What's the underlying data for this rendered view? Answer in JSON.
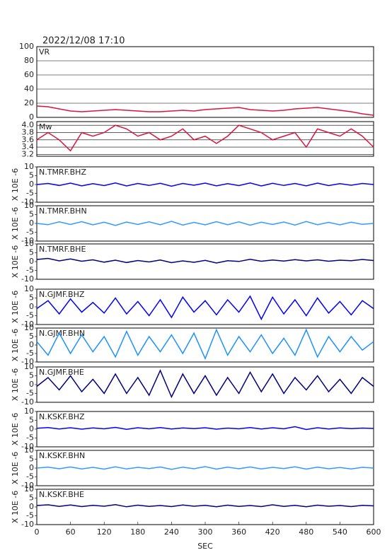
{
  "title": "2022/12/08 17:10",
  "chart_data": [
    {
      "type": "line",
      "title": "VR",
      "color": "#dc143c",
      "xlim": [
        0,
        600
      ],
      "ylim": [
        0,
        100
      ],
      "yticks": [
        0,
        20,
        40,
        60,
        80,
        100
      ],
      "grid": true,
      "x": [
        0,
        20,
        40,
        60,
        80,
        100,
        120,
        140,
        160,
        180,
        200,
        220,
        240,
        260,
        280,
        300,
        320,
        340,
        360,
        380,
        400,
        420,
        440,
        460,
        480,
        500,
        520,
        540,
        560,
        580,
        600
      ],
      "values": [
        16,
        15,
        12,
        9,
        8,
        9,
        10,
        11,
        10,
        9,
        8,
        8,
        9,
        10,
        9,
        11,
        12,
        13,
        14,
        11,
        10,
        9,
        10,
        12,
        13,
        14,
        12,
        10,
        8,
        5,
        3
      ]
    },
    {
      "type": "line",
      "title": "Mw",
      "color": "#dc143c",
      "xlim": [
        0,
        600
      ],
      "ylim": [
        3.15,
        4.1
      ],
      "yticks": [
        3.2,
        3.4,
        3.6,
        3.8,
        {
          "value": 4,
          "label": "4.0"
        }
      ],
      "grid": true,
      "x": [
        0,
        20,
        40,
        60,
        80,
        100,
        120,
        140,
        160,
        180,
        200,
        220,
        240,
        260,
        280,
        300,
        320,
        340,
        360,
        380,
        400,
        420,
        440,
        460,
        480,
        500,
        520,
        540,
        560,
        580,
        600
      ],
      "values": [
        3.6,
        3.8,
        3.6,
        3.3,
        3.8,
        3.7,
        3.8,
        4.0,
        3.9,
        3.7,
        3.8,
        3.6,
        3.7,
        3.9,
        3.6,
        3.7,
        3.5,
        3.7,
        4.0,
        3.9,
        3.8,
        3.6,
        3.7,
        3.8,
        3.4,
        3.9,
        3.8,
        3.7,
        3.9,
        3.7,
        3.4
      ]
    },
    {
      "type": "line",
      "title": "N.TMRF.BHZ",
      "ylabel": "X 10E -6",
      "color": "#0000ff",
      "xlim": [
        0,
        600
      ],
      "ylim": [
        -10,
        10
      ],
      "yticks": [
        -10,
        -5,
        0,
        5,
        10
      ],
      "x": [
        0,
        20,
        40,
        60,
        80,
        100,
        120,
        140,
        160,
        180,
        200,
        220,
        240,
        260,
        280,
        300,
        320,
        340,
        360,
        380,
        400,
        420,
        440,
        460,
        480,
        500,
        520,
        540,
        560,
        580,
        600
      ],
      "values": [
        0,
        0.6,
        -0.5,
        0.8,
        -0.7,
        0.5,
        -0.6,
        0.9,
        -0.8,
        0.6,
        -0.5,
        0.7,
        -0.9,
        0.6,
        -0.4,
        0.8,
        -0.7,
        0.5,
        -0.6,
        0.9,
        -0.8,
        0.7,
        -0.5,
        0.6,
        -0.7,
        0.8,
        -0.6,
        0.5,
        -0.4,
        0.6,
        0
      ]
    },
    {
      "type": "line",
      "title": "N.TMRF.BHN",
      "ylabel": "X 10E -6",
      "color": "#3399ff",
      "xlim": [
        0,
        600
      ],
      "ylim": [
        -10,
        10
      ],
      "yticks": [
        -10,
        -5,
        0,
        5,
        10
      ],
      "x": [
        0,
        20,
        40,
        60,
        80,
        100,
        120,
        140,
        160,
        180,
        200,
        220,
        240,
        260,
        280,
        300,
        320,
        340,
        360,
        380,
        400,
        420,
        440,
        460,
        480,
        500,
        520,
        540,
        560,
        580,
        600
      ],
      "values": [
        0,
        -0.7,
        0.9,
        -0.6,
        1.0,
        -0.8,
        0.7,
        -1.1,
        0.8,
        -0.6,
        0.9,
        -0.7,
        1.2,
        -0.9,
        0.6,
        -0.8,
        1.0,
        -0.7,
        0.9,
        -1.0,
        0.7,
        -0.6,
        0.8,
        -0.9,
        1.1,
        -0.7,
        0.6,
        -0.8,
        0.7,
        -0.5,
        0
      ]
    },
    {
      "type": "line",
      "title": "N.TMRF.BHE",
      "ylabel": "X 10E -6",
      "color": "#000080",
      "xlim": [
        0,
        600
      ],
      "ylim": [
        -10,
        10
      ],
      "yticks": [
        -10,
        -5,
        0,
        5,
        10
      ],
      "x": [
        0,
        20,
        40,
        60,
        80,
        100,
        120,
        140,
        160,
        180,
        200,
        220,
        240,
        260,
        280,
        300,
        320,
        340,
        360,
        380,
        400,
        420,
        440,
        460,
        480,
        500,
        520,
        540,
        560,
        580,
        600
      ],
      "values": [
        1.2,
        1.8,
        0.4,
        1.5,
        0.2,
        1.0,
        -0.3,
        0.8,
        -0.5,
        0.6,
        -0.2,
        0.9,
        -0.6,
        0.4,
        -0.4,
        0.7,
        -0.8,
        0.5,
        0.1,
        1.3,
        0.2,
        0.9,
        0.3,
        1.1,
        0.4,
        1.0,
        0.2,
        0.8,
        0.5,
        1.2,
        0.6
      ]
    },
    {
      "type": "line",
      "title": "N.GJMF.BHZ",
      "ylabel": "X 10E -6",
      "color": "#0000ff",
      "xlim": [
        0,
        600
      ],
      "ylim": [
        -10,
        10
      ],
      "yticks": [
        -10,
        -5,
        0,
        5,
        10
      ],
      "x": [
        0,
        20,
        40,
        60,
        80,
        100,
        120,
        140,
        160,
        180,
        200,
        220,
        240,
        260,
        280,
        300,
        320,
        340,
        360,
        380,
        400,
        420,
        440,
        460,
        480,
        500,
        520,
        540,
        560,
        580,
        600
      ],
      "values": [
        -1,
        3.5,
        -4,
        4.5,
        -3,
        2.5,
        -3.5,
        5,
        -4,
        3,
        -5,
        4,
        -6,
        5.5,
        -3,
        3.5,
        -4.5,
        4,
        -3,
        6,
        -7,
        5.5,
        -4,
        4,
        -5,
        5,
        -3.5,
        3,
        -4.5,
        3.5,
        -1
      ]
    },
    {
      "type": "line",
      "title": "N.GJMF.BHN",
      "ylabel": "X 10E -6",
      "color": "#1e90ff",
      "xlim": [
        0,
        600
      ],
      "ylim": [
        -10,
        10
      ],
      "yticks": [
        -10,
        -5,
        0,
        5,
        10
      ],
      "x": [
        0,
        20,
        40,
        60,
        80,
        100,
        120,
        140,
        160,
        180,
        200,
        220,
        240,
        260,
        280,
        300,
        320,
        340,
        360,
        380,
        400,
        420,
        440,
        460,
        480,
        500,
        520,
        540,
        560,
        580,
        600
      ],
      "values": [
        2,
        -6,
        7,
        -5,
        6,
        -4,
        5,
        -7,
        8,
        -6,
        5,
        -4,
        6,
        -5,
        7,
        -8,
        9,
        -6,
        5,
        -4,
        6,
        -5,
        4,
        -6,
        9,
        -7,
        5,
        -4,
        5,
        -3,
        2
      ]
    },
    {
      "type": "line",
      "title": "N.GJMF.BHE",
      "ylabel": "X 10E -6",
      "color": "#000080",
      "xlim": [
        0,
        600
      ],
      "ylim": [
        -10,
        10
      ],
      "yticks": [
        -10,
        -5,
        0,
        5,
        10
      ],
      "x": [
        0,
        20,
        40,
        60,
        80,
        100,
        120,
        140,
        160,
        180,
        200,
        220,
        240,
        260,
        280,
        300,
        320,
        340,
        360,
        380,
        400,
        420,
        440,
        460,
        480,
        500,
        520,
        540,
        560,
        580,
        600
      ],
      "values": [
        -1,
        4,
        -3,
        5,
        -4,
        3,
        -5,
        6,
        -5,
        4,
        -6,
        8,
        -7,
        6,
        -5,
        5,
        -6,
        4,
        -5,
        7,
        -4,
        6,
        -5,
        4,
        -3,
        5,
        -4,
        3,
        -5,
        4,
        -1
      ]
    },
    {
      "type": "line",
      "title": "N.KSKF.BHZ",
      "ylabel": "X 10E -6",
      "color": "#0000ff",
      "xlim": [
        0,
        600
      ],
      "ylim": [
        -10,
        10
      ],
      "yticks": [
        -10,
        -5,
        0,
        5,
        10
      ],
      "x": [
        0,
        20,
        40,
        60,
        80,
        100,
        120,
        140,
        160,
        180,
        200,
        220,
        240,
        260,
        280,
        300,
        320,
        340,
        360,
        380,
        400,
        420,
        440,
        460,
        480,
        500,
        520,
        540,
        560,
        580,
        600
      ],
      "values": [
        0.5,
        0.9,
        0.1,
        0.8,
        0.0,
        0.7,
        0.2,
        1.0,
        -0.1,
        0.8,
        0.2,
        0.9,
        0.1,
        0.7,
        0.3,
        0.8,
        0.0,
        0.6,
        0.2,
        0.9,
        0.1,
        0.8,
        0.2,
        1.4,
        -0.2,
        0.8,
        0.1,
        0.7,
        0.3,
        0.6,
        0.4
      ]
    },
    {
      "type": "line",
      "title": "N.KSKF.BHN",
      "ylabel": "X 10E -6",
      "color": "#3399ff",
      "xlim": [
        0,
        600
      ],
      "ylim": [
        -10,
        10
      ],
      "yticks": [
        -10,
        -5,
        0,
        5,
        10
      ],
      "x": [
        0,
        20,
        40,
        60,
        80,
        100,
        120,
        140,
        160,
        180,
        200,
        220,
        240,
        260,
        280,
        300,
        320,
        340,
        360,
        380,
        400,
        420,
        440,
        460,
        480,
        500,
        520,
        540,
        560,
        580,
        600
      ],
      "values": [
        0,
        0.5,
        -0.4,
        0.6,
        -0.5,
        0.4,
        -0.6,
        0.7,
        -0.5,
        0.4,
        -0.3,
        0.6,
        -0.7,
        0.5,
        -0.4,
        0.8,
        -0.6,
        0.5,
        -0.4,
        0.6,
        -0.5,
        0.4,
        -0.3,
        0.7,
        -0.6,
        0.5,
        -0.4,
        0.3,
        -0.5,
        0.4,
        0
      ]
    },
    {
      "type": "line",
      "title": "N.KSKF.BHE",
      "ylabel": "X 10E -6",
      "color": "#000080",
      "xlim": [
        0,
        600
      ],
      "ylim": [
        -10,
        10
      ],
      "yticks": [
        -10,
        -5,
        0,
        5,
        10
      ],
      "xlabel": "SEC",
      "xticks": [
        0,
        60,
        120,
        180,
        240,
        300,
        360,
        420,
        480,
        540,
        600
      ],
      "x": [
        0,
        20,
        40,
        60,
        80,
        100,
        120,
        140,
        160,
        180,
        200,
        220,
        240,
        260,
        280,
        300,
        320,
        340,
        360,
        380,
        400,
        420,
        440,
        460,
        480,
        500,
        520,
        540,
        560,
        580,
        600
      ],
      "values": [
        0.8,
        1.2,
        0.3,
        1.1,
        0.2,
        0.9,
        0.4,
        1.3,
        0.1,
        1.0,
        0.3,
        0.8,
        0.2,
        1.1,
        0.4,
        0.9,
        0.1,
        1.0,
        0.3,
        0.8,
        0.2,
        1.2,
        0.3,
        0.9,
        0.1,
        1.0,
        0.4,
        0.8,
        0.2,
        0.9,
        0.6
      ]
    }
  ]
}
